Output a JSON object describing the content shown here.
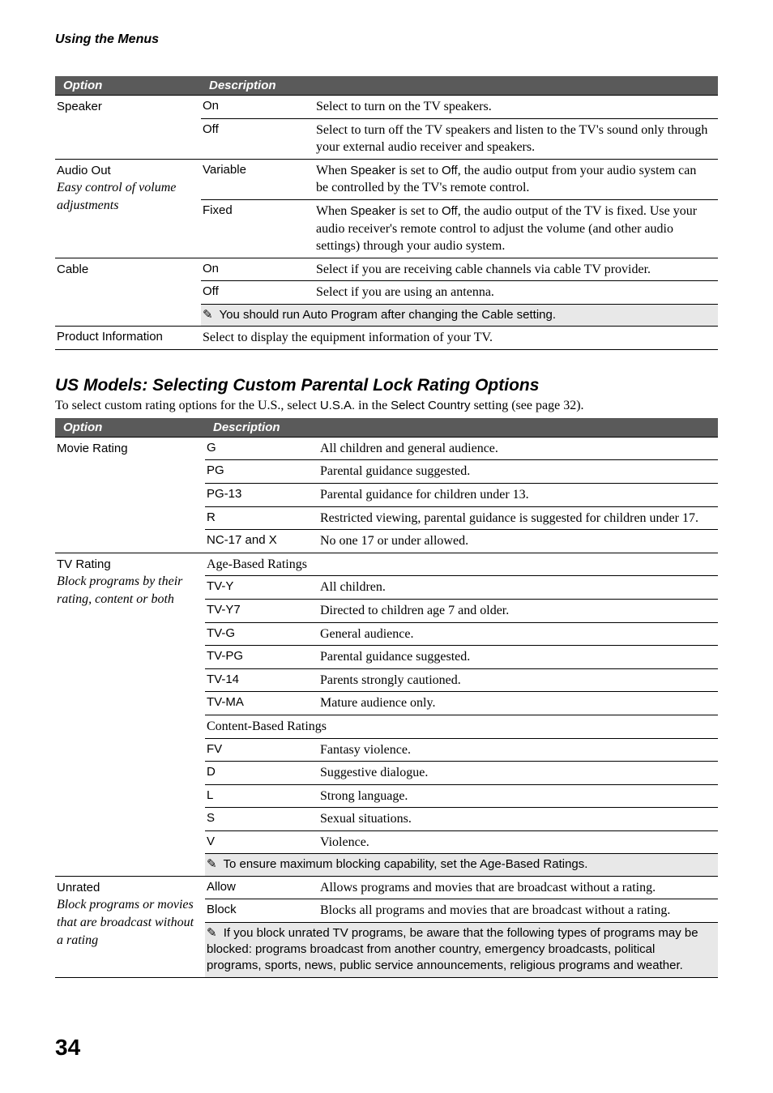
{
  "header": "Using the Menus",
  "table1": {
    "cols": {
      "option": "Option",
      "description": "Description"
    },
    "groups": [
      {
        "label": "Speaker",
        "sub": "",
        "rows": [
          {
            "val": "On",
            "desc": "Select to turn on the TV speakers."
          },
          {
            "val": "Off",
            "desc": "Select to turn off the TV speakers and listen to the TV's sound only through your external audio receiver and speakers."
          }
        ]
      },
      {
        "label": "Audio Out",
        "sub": "Easy control of volume adjustments",
        "rows": [
          {
            "val": "Variable",
            "desc_pre": "When ",
            "desc_sans1": "Speaker",
            "desc_mid": " is set to ",
            "desc_sans2": "Off",
            "desc_post": ", the audio output from your audio system can be controlled by the TV's remote control."
          },
          {
            "val": "Fixed",
            "desc_pre": "When ",
            "desc_sans1": "Speaker",
            "desc_mid": " is set to ",
            "desc_sans2": "Off",
            "desc_post": ", the audio output of the TV is fixed. Use your audio receiver's remote control to adjust the volume (and other audio settings) through your audio system."
          }
        ]
      },
      {
        "label": "Cable",
        "sub": "",
        "rows": [
          {
            "val": "On",
            "desc": "Select if you are receiving cable channels via cable TV provider."
          },
          {
            "val": "Off",
            "desc": "Select if you are using an antenna."
          }
        ],
        "note": "You should run Auto Program after changing the Cable setting."
      },
      {
        "label": "Product Information",
        "single": "Select to display the equipment information of your TV."
      }
    ]
  },
  "subheading": "US Models: Selecting Custom Parental Lock Rating Options",
  "intro": {
    "pre": "To select custom rating options for the U.S., select ",
    "s1": "U.S.A.",
    "mid": " in the ",
    "s2": "Select Country",
    "post": " setting (see page 32)."
  },
  "table2": {
    "cols": {
      "option": "Option",
      "description": "Description"
    },
    "groups": [
      {
        "label": "Movie Rating",
        "sub": "",
        "rows": [
          {
            "val": "G",
            "desc": "All children and general audience."
          },
          {
            "val": "PG",
            "desc": "Parental guidance suggested."
          },
          {
            "val": "PG-13",
            "desc": "Parental guidance for children under 13."
          },
          {
            "val": "R",
            "desc": "Restricted viewing, parental guidance is suggested for children under 17."
          },
          {
            "val": "NC-17 and X",
            "desc": "No one 17 or under allowed."
          }
        ]
      },
      {
        "label": "TV Rating",
        "sub": "Block programs by their rating, content or both",
        "subheaders": [
          {
            "text": "Age-Based Ratings",
            "after": 0
          },
          {
            "text": "Content-Based Ratings",
            "after": 6
          }
        ],
        "rows": [
          {
            "val": "TV-Y",
            "desc": "All children."
          },
          {
            "val": "TV-Y7",
            "desc": "Directed to children age 7 and older."
          },
          {
            "val": "TV-G",
            "desc": "General audience."
          },
          {
            "val": "TV-PG",
            "desc": "Parental guidance suggested."
          },
          {
            "val": "TV-14",
            "desc": "Parents strongly cautioned."
          },
          {
            "val": "TV-MA",
            "desc": "Mature audience only."
          },
          {
            "val": "FV",
            "desc": "Fantasy violence."
          },
          {
            "val": "D",
            "desc": "Suggestive dialogue."
          },
          {
            "val": "L",
            "desc": "Strong language."
          },
          {
            "val": "S",
            "desc": "Sexual situations."
          },
          {
            "val": "V",
            "desc": "Violence."
          }
        ],
        "note": "To ensure maximum blocking capability, set the Age-Based Ratings."
      },
      {
        "label": "Unrated",
        "sub": "Block programs or movies that are broadcast without a rating",
        "rows": [
          {
            "val": "Allow",
            "desc": "Allows programs and movies that are broadcast without a rating."
          },
          {
            "val": "Block",
            "desc": "Blocks all programs and movies that are broadcast without a rating."
          }
        ],
        "note": "If you block unrated TV programs, be aware that the following types of programs may be blocked: programs broadcast from another country, emergency broadcasts, political programs, sports, news, public service announcements, religious programs and weather."
      }
    ]
  },
  "pageNumber": "34",
  "noteGlyph": "✎"
}
